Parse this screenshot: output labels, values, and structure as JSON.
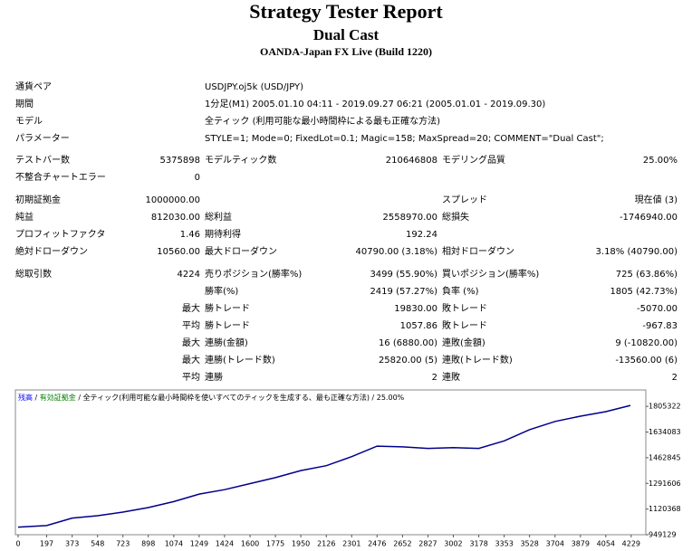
{
  "header": {
    "title": "Strategy Tester Report",
    "subtitle": "Dual Cast",
    "broker": "OANDA-Japan FX Live (Build 1220)"
  },
  "info": [
    {
      "label": "通貨ペア",
      "value": "USDJPY.oj5k (USD/JPY)"
    },
    {
      "label": "期間",
      "value": "1分足(M1) 2005.01.10 04:11 - 2019.09.27 06:21 (2005.01.01 - 2019.09.30)"
    },
    {
      "label": "モデル",
      "value": "全ティック (利用可能な最小時間枠による最も正確な方法)"
    },
    {
      "label": "パラメーター",
      "value": "STYLE=1; Mode=0; FixedLot=0.1; Magic=158; MaxSpread=20; COMMENT=\"Dual Cast\";"
    }
  ],
  "stats": [
    [
      [
        "テストバー数",
        "5375898",
        "モデルティック数",
        "210646808",
        "モデリング品質",
        "25.00%"
      ],
      [
        "不整合チャートエラー",
        "0",
        null,
        null,
        null,
        null
      ]
    ],
    [
      [
        "初期証拠金",
        "1000000.00",
        null,
        null,
        "スプレッド",
        "現在値 (3)"
      ],
      [
        "純益",
        "812030.00",
        "総利益",
        "2558970.00",
        "総損失",
        "-1746940.00"
      ],
      [
        "プロフィットファクタ",
        "1.46",
        "期待利得",
        "192.24",
        null,
        null
      ],
      [
        "絶対ドローダウン",
        "10560.00",
        "最大ドローダウン",
        "40790.00 (3.18%)",
        "相対ドローダウン",
        "3.18% (40790.00)"
      ]
    ],
    [
      [
        "総取引数",
        "4224",
        "売りポジション(勝率%)",
        "3499 (55.90%)",
        "買いポジション(勝率%)",
        "725 (63.86%)"
      ],
      [
        null,
        null,
        "勝率(%)",
        "2419 (57.27%)",
        "負率 (%)",
        "1805 (42.73%)"
      ],
      [
        null,
        "最大",
        "勝トレード",
        "19830.00",
        "敗トレード",
        "-5070.00"
      ],
      [
        null,
        "平均",
        "勝トレード",
        "1057.86",
        "敗トレード",
        "-967.83"
      ],
      [
        null,
        "最大",
        "連勝(金額)",
        "16 (6880.00)",
        "連敗(金額)",
        "9 (-10820.00)"
      ],
      [
        null,
        "最大",
        "連勝(トレード数)",
        "25820.00 (5)",
        "連敗(トレード数)",
        "-13560.00 (6)"
      ],
      [
        null,
        "平均",
        "連勝",
        "2",
        "連敗",
        "2"
      ]
    ]
  ],
  "chart_data": {
    "type": "line",
    "legend_separator": " / ",
    "legend_extra": [
      {
        "text": "有効証拠金",
        "color": "#008000"
      },
      {
        "text": "全ティック(利用可能な最小時間枠を使いすべてのティックを生成する、最も正確な方法)",
        "color": "#000000"
      },
      {
        "text": "25.00%",
        "color": "#000000"
      }
    ],
    "x": [
      0,
      197,
      373,
      548,
      723,
      898,
      1074,
      1249,
      1424,
      1600,
      1775,
      1950,
      2126,
      2301,
      2476,
      2652,
      2827,
      3002,
      3178,
      3353,
      3528,
      3704,
      3879,
      4054,
      4224
    ],
    "series": [
      {
        "name": "残高",
        "color": "#0000ff",
        "line_color": "#00008b",
        "values": [
          1000000,
          1010000,
          1060000,
          1076000,
          1100000,
          1130000,
          1170000,
          1220000,
          1250000,
          1290000,
          1330000,
          1377000,
          1410000,
          1470000,
          1540000,
          1535000,
          1525000,
          1530000,
          1525000,
          1575000,
          1650000,
          1705000,
          1740000,
          1770000,
          1812030
        ]
      }
    ],
    "xlim": [
      0,
      4330
    ],
    "ylim": [
      949129,
      1915000
    ],
    "xticks": [
      0,
      197,
      373,
      548,
      723,
      898,
      1074,
      1249,
      1424,
      1600,
      1775,
      1950,
      2126,
      2301,
      2476,
      2652,
      2827,
      3002,
      3178,
      3353,
      3528,
      3704,
      3879,
      4054,
      4229
    ],
    "yticks": [
      949129,
      1120368,
      1291606,
      1462845,
      1634083,
      1805322
    ]
  }
}
